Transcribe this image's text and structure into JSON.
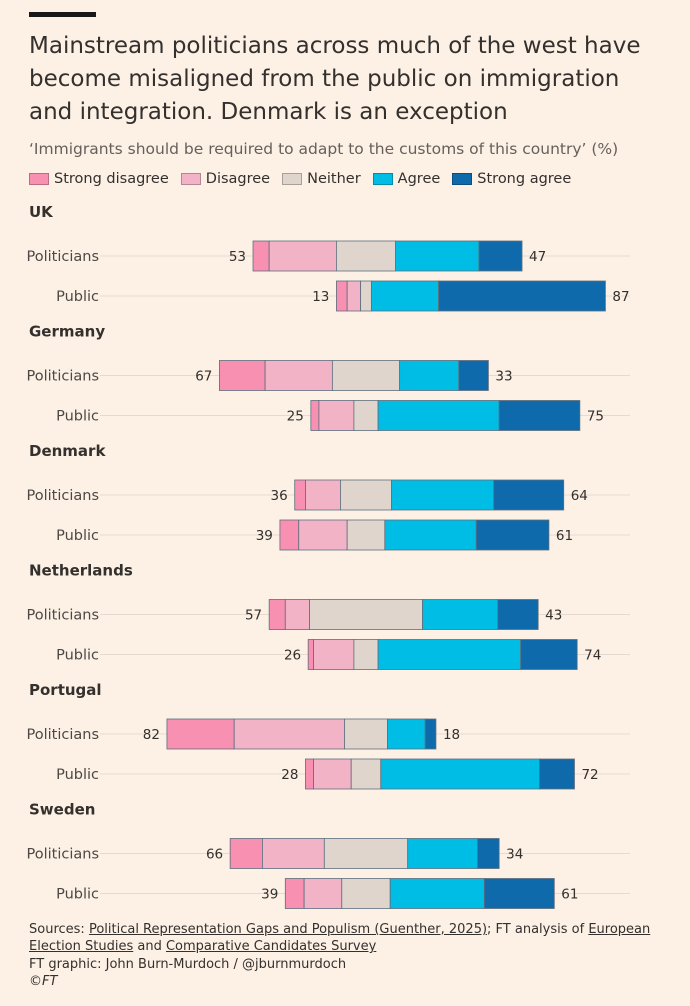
{
  "header": {
    "title": "Mainstream politicians across much of the west have become misaligned from the public on immigration and integration. Denmark is an exception",
    "subtitle": "‘Immigrants should be required to adapt to the customs of this country’ (%)"
  },
  "legend": [
    {
      "label": "Strong disagree",
      "color": "#f790b1"
    },
    {
      "label": "Disagree",
      "color": "#f2b3c6"
    },
    {
      "label": "Neither",
      "color": "#e0d5cc"
    },
    {
      "label": "Agree",
      "color": "#00bde6"
    },
    {
      "label": "Strong agree",
      "color": "#0f6aab"
    }
  ],
  "chart_data": {
    "type": "bar",
    "subtype": "diverging-stacked",
    "title": "‘Immigrants should be required to adapt to the customs of this country’ (%)",
    "segments": [
      "Strong disagree",
      "Disagree",
      "Neither",
      "Agree",
      "Strong agree"
    ],
    "colors": [
      "#f790b1",
      "#f2b3c6",
      "#e0d5cc",
      "#00bde6",
      "#0f6aab"
    ],
    "groups": [
      {
        "country": "UK",
        "rows": [
          {
            "label": "Politicians",
            "disagree_total": "53",
            "agree_total": "47",
            "values": [
              6,
              25,
              22,
              31,
              16
            ]
          },
          {
            "label": "Public",
            "disagree_total": "13",
            "agree_total": "87",
            "values": [
              4,
              5,
              4,
              25,
              62
            ]
          }
        ]
      },
      {
        "country": "Germany",
        "rows": [
          {
            "label": "Politicians",
            "disagree_total": "67",
            "agree_total": "33",
            "values": [
              17,
              25,
              25,
              22,
              11
            ]
          },
          {
            "label": "Public",
            "disagree_total": "25",
            "agree_total": "75",
            "values": [
              3,
              13,
              9,
              45,
              30
            ]
          }
        ]
      },
      {
        "country": "Denmark",
        "rows": [
          {
            "label": "Politicians",
            "disagree_total": "36",
            "agree_total": "64",
            "values": [
              4,
              13,
              19,
              38,
              26
            ]
          },
          {
            "label": "Public",
            "disagree_total": "39",
            "agree_total": "61",
            "values": [
              7,
              18,
              14,
              34,
              27
            ]
          }
        ]
      },
      {
        "country": "Netherlands",
        "rows": [
          {
            "label": "Politicians",
            "disagree_total": "57",
            "agree_total": "43",
            "values": [
              6,
              9,
              42,
              28,
              15
            ]
          },
          {
            "label": "Public",
            "disagree_total": "26",
            "agree_total": "74",
            "values": [
              2,
              15,
              9,
              53,
              21
            ]
          }
        ]
      },
      {
        "country": "Portugal",
        "rows": [
          {
            "label": "Politicians",
            "disagree_total": "82",
            "agree_total": "18",
            "values": [
              25,
              41,
              16,
              14,
              4
            ]
          },
          {
            "label": "Public",
            "disagree_total": "28",
            "agree_total": "72",
            "values": [
              3,
              14,
              11,
              59,
              13
            ]
          }
        ]
      },
      {
        "country": "Sweden",
        "rows": [
          {
            "label": "Politicians",
            "disagree_total": "66",
            "agree_total": "34",
            "values": [
              12,
              23,
              31,
              26,
              8
            ]
          },
          {
            "label": "Public",
            "disagree_total": "39",
            "agree_total": "61",
            "values": [
              7,
              14,
              18,
              35,
              26
            ]
          }
        ]
      }
    ]
  },
  "footer": {
    "sources_prefix": "Sources: ",
    "source_link_1": "Political Representation Gaps and Populism (Guenther, 2025)",
    "sources_mid": "; FT analysis of ",
    "source_link_2": "European Election Studies",
    "sources_and": " and ",
    "source_link_3": "Comparative Candidates Survey",
    "credit": "FT graphic: John Burn-Murdoch / @jburnmurdoch",
    "logo": "©FT"
  }
}
